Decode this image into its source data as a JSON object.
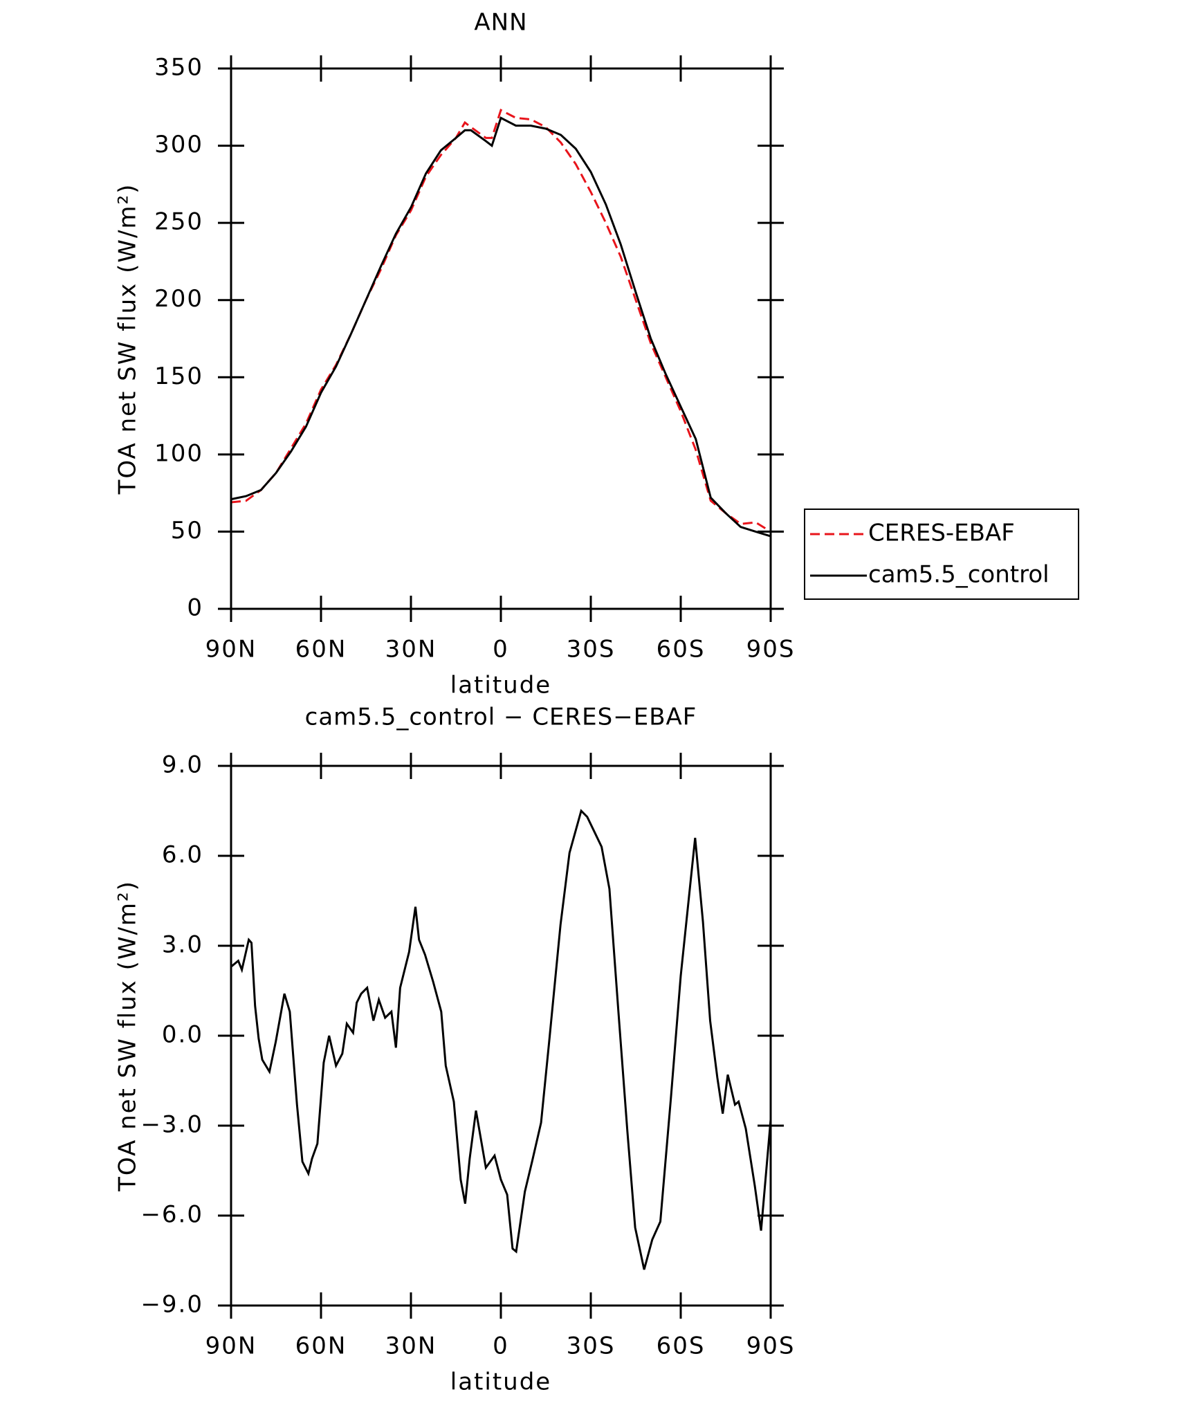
{
  "chart_data": [
    {
      "type": "line",
      "title": "ANN",
      "xlabel": "latitude",
      "ylabel": "TOA net SW flux (W/m²)",
      "xlim": [
        90,
        -90
      ],
      "xticks": [
        {
          "value": 90,
          "label": "90N"
        },
        {
          "value": 60,
          "label": "60N"
        },
        {
          "value": 30,
          "label": "30N"
        },
        0,
        {
          "value": -30,
          "label": "30S"
        },
        {
          "value": -60,
          "label": "60S"
        },
        {
          "value": -90,
          "label": "90S"
        }
      ],
      "ylim": [
        0,
        350
      ],
      "yticks": [
        0,
        50,
        100,
        150,
        200,
        250,
        300,
        350
      ],
      "legend": "right",
      "series": [
        {
          "name": "CERES-EBAF",
          "color": "#e8141b",
          "dash": "dashed",
          "x": [
            90,
            85,
            80,
            75,
            70,
            65,
            60,
            55,
            50,
            45,
            40,
            35,
            30,
            25,
            20,
            15,
            12,
            10,
            5,
            3,
            0,
            -5,
            -10,
            -15,
            -20,
            -25,
            -30,
            -35,
            -40,
            -45,
            -50,
            -55,
            -60,
            -65,
            -70,
            -75,
            -80,
            -85,
            -90
          ],
          "values": [
            69,
            70,
            77,
            88,
            104,
            120,
            142,
            158,
            178,
            200,
            220,
            242,
            258,
            280,
            294,
            305,
            315,
            312,
            305,
            305,
            323,
            318,
            317,
            312,
            302,
            288,
            270,
            250,
            228,
            200,
            172,
            150,
            128,
            103,
            70,
            62,
            55,
            56,
            50
          ]
        },
        {
          "name": "cam5.5_control",
          "color": "#000000",
          "dash": "solid",
          "x": [
            90,
            85,
            80,
            75,
            70,
            65,
            60,
            55,
            50,
            45,
            40,
            35,
            30,
            25,
            20,
            15,
            12,
            10,
            5,
            3,
            0,
            -5,
            -10,
            -15,
            -20,
            -25,
            -30,
            -35,
            -40,
            -45,
            -50,
            -55,
            -60,
            -65,
            -70,
            -75,
            -80,
            -85,
            -90
          ],
          "values": [
            71,
            73,
            77,
            88,
            102,
            118,
            140,
            157,
            178,
            200,
            222,
            243,
            260,
            282,
            297,
            305,
            310,
            310,
            303,
            300,
            318,
            313,
            313,
            311,
            307,
            298,
            283,
            262,
            236,
            205,
            175,
            152,
            131,
            110,
            72,
            62,
            53,
            50,
            47
          ]
        }
      ]
    },
    {
      "type": "line",
      "title": "cam5.5_control − CERES−EBAF",
      "xlabel": "latitude",
      "ylabel": "TOA net SW flux (W/m²)",
      "xlim": [
        90,
        -90
      ],
      "xticks": [
        {
          "value": 90,
          "label": "90N"
        },
        {
          "value": 60,
          "label": "60N"
        },
        {
          "value": 30,
          "label": "30N"
        },
        0,
        {
          "value": -30,
          "label": "30S"
        },
        {
          "value": -60,
          "label": "60S"
        },
        {
          "value": -90,
          "label": "90S"
        }
      ],
      "ylim": [
        -9,
        9
      ],
      "yticks": [
        {
          "value": -9,
          "label": "−9.0"
        },
        {
          "value": -6,
          "label": "−6.0"
        },
        {
          "value": -3,
          "label": "−3.0"
        },
        {
          "value": 0,
          "label": "0.0"
        },
        {
          "value": 3,
          "label": "3.0"
        },
        {
          "value": 6,
          "label": "6.0"
        },
        {
          "value": 9,
          "label": "9.0"
        }
      ],
      "series": [
        {
          "name": "cam5.5_control − CERES−EBAF",
          "color": "#000000",
          "dash": "solid",
          "x": [
            90,
            87.6,
            86.4,
            84.1,
            83.2,
            82,
            80.8,
            79.6,
            77.2,
            75.1,
            72.2,
            70.4,
            68,
            66.2,
            64.2,
            63,
            61.2,
            59.1,
            57.3,
            55,
            52.9,
            51.4,
            49.3,
            48.1,
            46.6,
            44.6,
            42.5,
            40.7,
            38.6,
            36.5,
            35,
            33.6,
            30.6,
            28.5,
            27.3,
            25.3,
            22.6,
            19.9,
            18.4,
            15.7,
            13.4,
            11.9,
            10.4,
            8.3,
            5,
            2.1,
            0,
            -2.1,
            -3.9,
            -5.1,
            -8,
            -10.4,
            -13.4,
            -16.1,
            -19.9,
            -22.9,
            -26.8,
            -28.8,
            -31.2,
            -33.6,
            -36.2,
            -39.2,
            -42.2,
            -44.8,
            -47.8,
            -50.5,
            -53.2,
            -56.7,
            -60,
            -64.8,
            -67.4,
            -69.8,
            -72.2,
            -74,
            -75.7,
            -78.1,
            -79.3,
            -81.7,
            -84.7,
            -86.8,
            -90
          ],
          "values": [
            2.3,
            2.5,
            2.2,
            3.2,
            3.1,
            1.0,
            -0.1,
            -0.8,
            -1.2,
            -0.2,
            1.4,
            0.8,
            -2.3,
            -4.2,
            -4.6,
            -4.1,
            -3.6,
            -0.9,
            0.0,
            -1.0,
            -0.6,
            0.4,
            0.1,
            1.1,
            1.4,
            1.6,
            0.5,
            1.2,
            0.6,
            0.8,
            -0.4,
            1.6,
            2.8,
            4.3,
            3.2,
            2.7,
            1.8,
            0.8,
            -1.0,
            -2.2,
            -4.8,
            -5.6,
            -4.1,
            -2.5,
            -4.4,
            -4.0,
            -4.8,
            -5.3,
            -7.1,
            -7.2,
            -5.2,
            -4.2,
            -2.9,
            -0.2,
            3.7,
            6.1,
            7.5,
            7.3,
            6.8,
            6.3,
            4.9,
            0.8,
            -3.2,
            -6.4,
            -7.8,
            -6.8,
            -6.2,
            -2.1,
            2.0,
            6.6,
            3.8,
            0.5,
            -1.4,
            -2.6,
            -1.3,
            -2.3,
            -2.2,
            -3.1,
            -5.0,
            -6.5,
            -2.8
          ]
        }
      ]
    }
  ]
}
